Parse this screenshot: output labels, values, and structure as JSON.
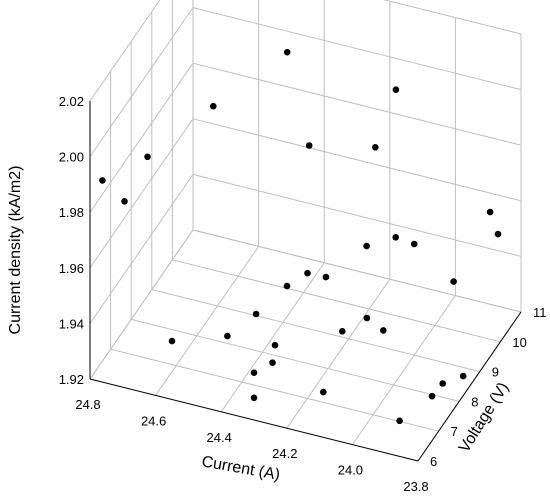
{
  "chart_data": {
    "type": "scatter3d",
    "title": "",
    "x_axis": {
      "label": "Current (A)",
      "range": [
        23.8,
        24.8
      ],
      "ticks": [
        "24.8",
        "24.6",
        "24.4",
        "24.2",
        "24.0",
        "23.8"
      ]
    },
    "y_axis": {
      "label": "Voltage (V)",
      "range": [
        6,
        11
      ],
      "ticks": [
        "6",
        "7",
        "8",
        "9",
        "10",
        "11"
      ]
    },
    "z_axis": {
      "label": "Current density (kA/m2)",
      "range": [
        1.92,
        2.02
      ],
      "ticks": [
        "1.92",
        "1.94",
        "1.96",
        "1.98",
        "2.00",
        "2.02"
      ]
    },
    "grid": true,
    "marker_color": "#000000",
    "points": [
      {
        "current": 24.5,
        "voltage": 10.2,
        "density": 2.034
      },
      {
        "current": 24.7,
        "voltage": 7.2,
        "density": 1.99
      },
      {
        "current": 24.45,
        "voltage": 10.0,
        "density": 2.005
      },
      {
        "current": 24.6,
        "voltage": 8.8,
        "density": 1.994
      },
      {
        "current": 24.15,
        "voltage": 10.5,
        "density": 1.995
      },
      {
        "current": 24.32,
        "voltage": 9.0,
        "density": 1.986
      },
      {
        "current": 24.8,
        "voltage": 6.6,
        "density": 1.985
      },
      {
        "current": 24.72,
        "voltage": 6.4,
        "density": 1.982
      },
      {
        "current": 24.15,
        "voltage": 9.5,
        "density": 1.985
      },
      {
        "current": 24.0,
        "voltage": 9.0,
        "density": 1.96
      },
      {
        "current": 24.05,
        "voltage": 8.9,
        "density": 1.962
      },
      {
        "current": 24.12,
        "voltage": 8.6,
        "density": 1.96
      },
      {
        "current": 23.8,
        "voltage": 9.5,
        "density": 1.972
      },
      {
        "current": 23.82,
        "voltage": 10.2,
        "density": 1.956
      },
      {
        "current": 23.88,
        "voltage": 9.0,
        "density": 1.95
      },
      {
        "current": 24.25,
        "voltage": 7.8,
        "density": 1.955
      },
      {
        "current": 24.2,
        "voltage": 7.9,
        "density": 1.954
      },
      {
        "current": 24.3,
        "voltage": 7.6,
        "density": 1.951
      },
      {
        "current": 24.05,
        "voltage": 7.5,
        "density": 1.948
      },
      {
        "current": 24.35,
        "voltage": 6.9,
        "density": 1.947
      },
      {
        "current": 24.4,
        "voltage": 6.3,
        "density": 1.944
      },
      {
        "current": 24.55,
        "voltage": 6.0,
        "density": 1.941
      },
      {
        "current": 24.3,
        "voltage": 6.0,
        "density": 1.937
      },
      {
        "current": 24.25,
        "voltage": 6.1,
        "density": 1.941
      },
      {
        "current": 24.28,
        "voltage": 6.7,
        "density": 1.94
      },
      {
        "current": 24.1,
        "voltage": 7.1,
        "density": 1.946
      },
      {
        "current": 24.0,
        "voltage": 7.5,
        "density": 1.945
      },
      {
        "current": 24.12,
        "voltage": 6.5,
        "density": 1.93
      },
      {
        "current": 24.3,
        "voltage": 6.0,
        "density": 1.928
      },
      {
        "current": 23.9,
        "voltage": 6.7,
        "density": 1.924
      },
      {
        "current": 23.82,
        "voltage": 7.0,
        "density": 1.932
      },
      {
        "current": 23.8,
        "voltage": 7.2,
        "density": 1.935
      },
      {
        "current": 23.75,
        "voltage": 7.4,
        "density": 1.937
      }
    ]
  }
}
